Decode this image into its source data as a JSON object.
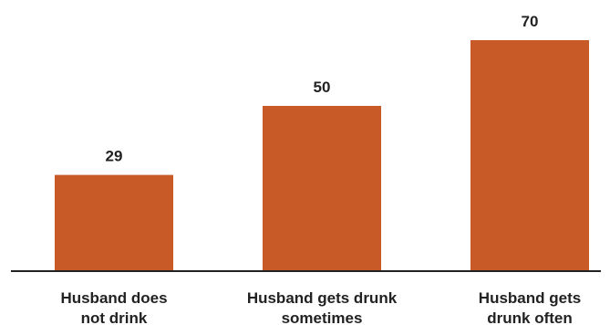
{
  "chart_data": {
    "type": "bar",
    "title": "",
    "xlabel": "",
    "ylabel": "",
    "categories": [
      [
        "Husband does",
        "not drink"
      ],
      [
        "Husband gets drunk",
        "sometimes"
      ],
      [
        "Husband gets",
        "drunk often"
      ]
    ],
    "values": [
      29,
      50,
      70
    ],
    "data_labels": [
      "29",
      "50",
      "70"
    ],
    "ylim": [
      0,
      70
    ],
    "grid": false,
    "legend": "none",
    "bar_color": "#c85a27",
    "axis_color": "#222222",
    "text_color": "#222222"
  }
}
